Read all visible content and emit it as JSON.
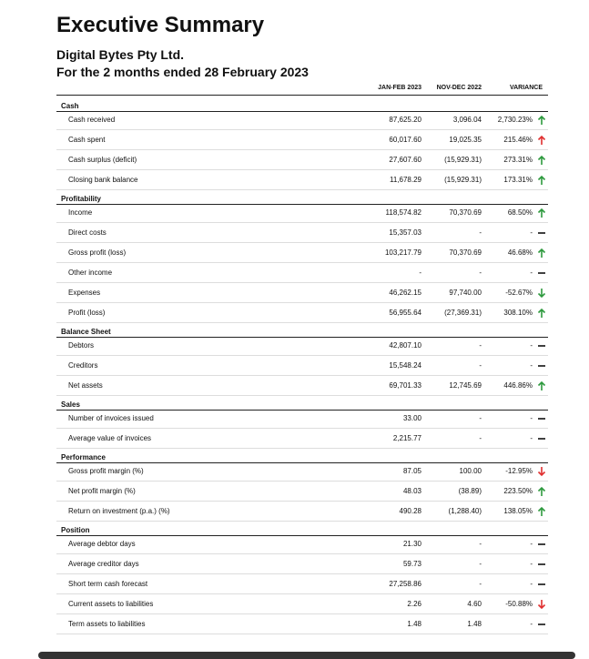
{
  "header": {
    "title": "Executive Summary",
    "company": "Digital Bytes Pty Ltd.",
    "period": "For the 2 months ended 28 February 2023"
  },
  "table": {
    "columns": [
      "JAN-FEB 2023",
      "NOV-DEC 2022",
      "VARIANCE"
    ],
    "sections": [
      {
        "name": "Cash",
        "rows": [
          {
            "label": "Cash received",
            "cells": [
              "87,625.20",
              "3,096.04",
              "2,730.23%"
            ],
            "trend": "up",
            "trend_color": "#2e9a3e"
          },
          {
            "label": "Cash spent",
            "cells": [
              "60,017.60",
              "19,025.35",
              "215.46%"
            ],
            "trend": "up",
            "trend_color": "#e03030"
          },
          {
            "label": "Cash surplus (deficit)",
            "cells": [
              "27,607.60",
              "(15,929.31)",
              "273.31%"
            ],
            "trend": "up",
            "trend_color": "#2e9a3e"
          },
          {
            "label": "Closing bank balance",
            "cells": [
              "11,678.29",
              "(15,929.31)",
              "173.31%"
            ],
            "trend": "up",
            "trend_color": "#2e9a3e"
          }
        ]
      },
      {
        "name": "Profitability",
        "rows": [
          {
            "label": "Income",
            "cells": [
              "118,574.82",
              "70,370.69",
              "68.50%"
            ],
            "trend": "up",
            "trend_color": "#2e9a3e"
          },
          {
            "label": "Direct costs",
            "cells": [
              "15,357.03",
              "-",
              "-"
            ],
            "trend": "flat",
            "trend_color": "#111111"
          },
          {
            "label": "Gross profit (loss)",
            "cells": [
              "103,217.79",
              "70,370.69",
              "46.68%"
            ],
            "trend": "up",
            "trend_color": "#2e9a3e"
          },
          {
            "label": "Other income",
            "cells": [
              "-",
              "-",
              "-"
            ],
            "trend": "flat",
            "trend_color": "#111111"
          },
          {
            "label": "Expenses",
            "cells": [
              "46,262.15",
              "97,740.00",
              "-52.67%"
            ],
            "trend": "down",
            "trend_color": "#2e9a3e"
          },
          {
            "label": "Profit (loss)",
            "cells": [
              "56,955.64",
              "(27,369.31)",
              "308.10%"
            ],
            "trend": "up",
            "trend_color": "#2e9a3e"
          }
        ]
      },
      {
        "name": "Balance Sheet",
        "rows": [
          {
            "label": "Debtors",
            "cells": [
              "42,807.10",
              "-",
              "-"
            ],
            "trend": "flat",
            "trend_color": "#111111"
          },
          {
            "label": "Creditors",
            "cells": [
              "15,548.24",
              "-",
              "-"
            ],
            "trend": "flat",
            "trend_color": "#111111"
          },
          {
            "label": "Net assets",
            "cells": [
              "69,701.33",
              "12,745.69",
              "446.86%"
            ],
            "trend": "up",
            "trend_color": "#2e9a3e"
          }
        ]
      },
      {
        "name": "Sales",
        "rows": [
          {
            "label": "Number of invoices issued",
            "cells": [
              "33.00",
              "-",
              "-"
            ],
            "trend": "flat",
            "trend_color": "#111111"
          },
          {
            "label": "Average value of invoices",
            "cells": [
              "2,215.77",
              "-",
              "-"
            ],
            "trend": "flat",
            "trend_color": "#111111"
          }
        ]
      },
      {
        "name": "Performance",
        "rows": [
          {
            "label": "Gross profit margin (%)",
            "cells": [
              "87.05",
              "100.00",
              "-12.95%"
            ],
            "trend": "down",
            "trend_color": "#e03030"
          },
          {
            "label": "Net profit margin (%)",
            "cells": [
              "48.03",
              "(38.89)",
              "223.50%"
            ],
            "trend": "up",
            "trend_color": "#2e9a3e"
          },
          {
            "label": "Return on investment (p.a.) (%)",
            "cells": [
              "490.28",
              "(1,288.40)",
              "138.05%"
            ],
            "trend": "up",
            "trend_color": "#2e9a3e"
          }
        ]
      },
      {
        "name": "Position",
        "rows": [
          {
            "label": "Average debtor days",
            "cells": [
              "21.30",
              "-",
              "-"
            ],
            "trend": "flat",
            "trend_color": "#111111"
          },
          {
            "label": "Average creditor days",
            "cells": [
              "59.73",
              "-",
              "-"
            ],
            "trend": "flat",
            "trend_color": "#111111"
          },
          {
            "label": "Short term cash forecast",
            "cells": [
              "27,258.86",
              "-",
              "-"
            ],
            "trend": "flat",
            "trend_color": "#111111"
          },
          {
            "label": "Current assets to liabilities",
            "cells": [
              "2.26",
              "4.60",
              "-50.88%"
            ],
            "trend": "down",
            "trend_color": "#e03030"
          },
          {
            "label": "Term assets to liabilities",
            "cells": [
              "1.48",
              "1.48",
              "-"
            ],
            "trend": "flat",
            "trend_color": "#111111"
          }
        ]
      }
    ]
  }
}
